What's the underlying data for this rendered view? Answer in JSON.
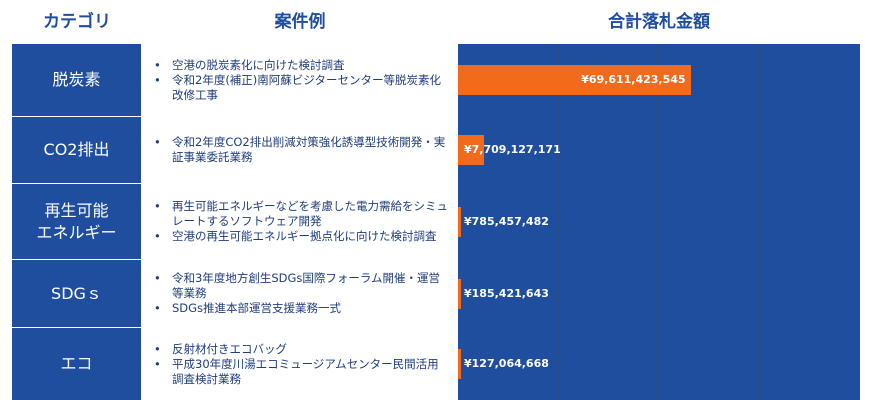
{
  "headers": {
    "category": "カテゴリ",
    "examples": "案件例",
    "amount": "合計落札金額"
  },
  "chart_data": {
    "type": "bar",
    "orientation": "horizontal",
    "title": "合計落札金額",
    "categories": [
      "脱炭素",
      "CO2排出",
      "再生可能エネルギー",
      "SDGｓ",
      "エコ"
    ],
    "values": [
      69611423545,
      7709127171,
      785457482,
      185421643,
      127064668
    ],
    "value_labels": [
      "¥69,611,423,545",
      "¥7,709,127,171",
      "¥785,457,482",
      "¥185,421,643",
      "¥127,064,668"
    ],
    "xlim": [
      0,
      120000000000
    ],
    "grid": true,
    "bar_color": "#f26a1b",
    "background_color": "#1f4e9e"
  },
  "rows": [
    {
      "category": "脱炭素",
      "examples": [
        "空港の脱炭素化に向けた検討調査",
        "令和2年度(補正)南阿蘇ビジターセンター等脱炭素化改修工事"
      ]
    },
    {
      "category": "CO2排出",
      "examples": [
        "令和2年度CO2排出削減対策強化誘導型技術開発・実証事業委託業務"
      ]
    },
    {
      "category": "再生可能エネルギー",
      "examples": [
        "再生可能エネルギーなどを考慮した電力需給をシミュレートするソフトウェア開発",
        "空港の再生可能エネルギー拠点化に向けた検討調査"
      ]
    },
    {
      "category": "SDGｓ",
      "examples": [
        "令和3年度地方創生SDGs国際フォーラム開催・運営等業務",
        "SDGs推進本部運営支援業務一式"
      ]
    },
    {
      "category": "エコ",
      "examples": [
        "反射材付きエコバッグ",
        "平成30年度川湯エコミュージアムセンター民間活用調査検討業務"
      ]
    }
  ]
}
